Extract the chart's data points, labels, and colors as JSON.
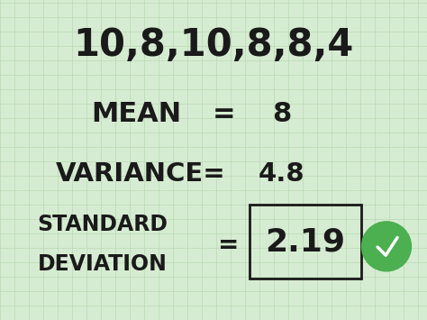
{
  "bg_color": "#d6ecd2",
  "grid_color": "#b8d9b3",
  "text_color": "#1a1a1a",
  "line1": "10,8,10,8,8,4",
  "line2_label": "MEAN",
  "line2_eq": "=",
  "line2_value": "8",
  "line3_label": "VARIANCE=",
  "line3_value": "4.8",
  "line4_label1": "STANDARD",
  "line4_label2": "DEVIATION",
  "line4_eq": "=",
  "line4_value": "2.19",
  "box_color": "#1a1a1a",
  "check_color": "#4caf50",
  "check_mark_color": "#ffffff",
  "font_size_line1": 30,
  "font_size_line2": 22,
  "font_size_line3": 21,
  "font_size_line4_label": 17,
  "font_size_line4_value": 26,
  "fig_width": 4.74,
  "fig_height": 3.55,
  "dpi": 100
}
